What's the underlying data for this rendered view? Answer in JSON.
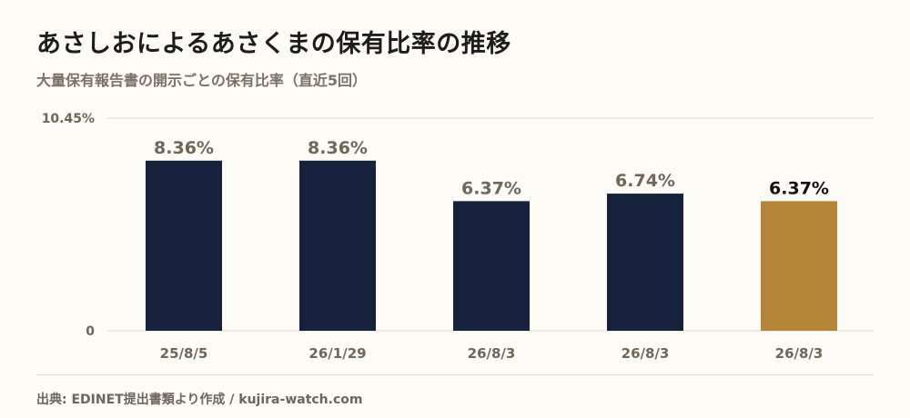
{
  "header": {
    "title": "あさしおによるあさくまの保有比率の推移",
    "subtitle": "大量保有報告書の開示ごとの保有比率（直近5回）"
  },
  "footer": {
    "source": "出典: EDINET提出書類より作成 / kujira-watch.com"
  },
  "colors": {
    "bar_default": "#16213b",
    "bar_latest": "#b5853a",
    "label_default": "#6f6658",
    "label_latest": "#111111",
    "axis_text": "#6f6658",
    "grid": "#ddd8c9"
  },
  "chart_data": {
    "type": "bar",
    "categories": [
      "25/8/5",
      "26/1/29",
      "26/8/3",
      "26/8/3",
      "26/8/3"
    ],
    "values": [
      8.36,
      8.36,
      6.37,
      6.74,
      6.37
    ],
    "value_labels": [
      "8.36%",
      "8.36%",
      "6.37%",
      "6.74%",
      "6.37%"
    ],
    "highlight_index": 4,
    "ylim": [
      0,
      10.45
    ],
    "ytick_labels": [
      "10.45%",
      "0"
    ],
    "grid": true
  }
}
